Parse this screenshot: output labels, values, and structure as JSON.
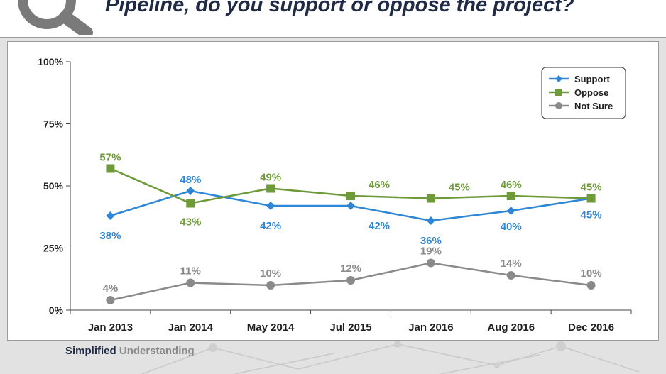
{
  "header": {
    "title": "Pipeline, do you support or oppose the project?"
  },
  "footer": {
    "brand_strong": "Simplified",
    "brand_light": "Understanding"
  },
  "colors": {
    "support": "#2e86d6",
    "oppose": "#6f9a3a",
    "not_sure": "#8a8a8a",
    "axis_text": "#1f1f1f"
  },
  "chart_data": {
    "type": "line",
    "categories": [
      "Jan 2013",
      "Jan 2014",
      "May 2014",
      "Jul 2015",
      "Jan 2016",
      "Aug 2016",
      "Dec 2016"
    ],
    "yticks": [
      "0%",
      "25%",
      "50%",
      "75%",
      "100%"
    ],
    "ylim": [
      0,
      100
    ],
    "legend_position": "top-right",
    "series": [
      {
        "name": "Support",
        "values": [
          38,
          48,
          42,
          42,
          36,
          40,
          45
        ],
        "labels": [
          "38%",
          "48%",
          "42%",
          "42%",
          "36%",
          "40%",
          "45%"
        ],
        "marker": "diamond"
      },
      {
        "name": "Oppose",
        "values": [
          57,
          43,
          49,
          46,
          45,
          46,
          45
        ],
        "labels": [
          "57%",
          "43%",
          "49%",
          "46%",
          "45%",
          "46%",
          "45%"
        ],
        "marker": "square"
      },
      {
        "name": "Not Sure",
        "values": [
          4,
          11,
          10,
          12,
          19,
          14,
          10
        ],
        "labels": [
          "4%",
          "11%",
          "10%",
          "12%",
          "19%",
          "14%",
          "10%"
        ],
        "marker": "circle"
      }
    ]
  }
}
